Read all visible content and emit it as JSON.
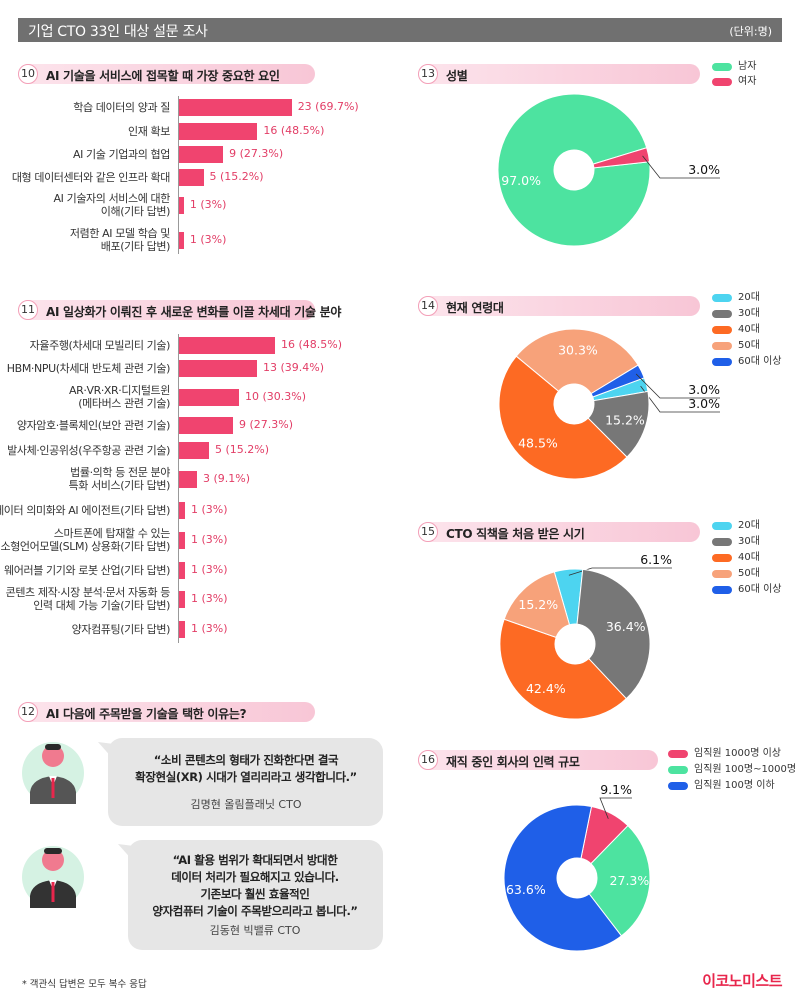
{
  "header": {
    "title": "기업 CTO 33인 대상 설문 조사",
    "unit": "(단위:명)"
  },
  "q10": {
    "num": "10",
    "title": "AI 기술을 서비스에 접목할 때 가장 중요한 요인",
    "chart_data": {
      "type": "bar",
      "categories": [
        "학습 데이터의 양과 질",
        "인재 확보",
        "AI 기술 기업과의 협업",
        "대형 데이터센터와 같은 인프라 확대",
        "AI 기술자의 서비스에 대한\n이해(기타 답변)",
        "저렴한 AI 모델 학습 및\n배포(기타 답변)"
      ],
      "values": [
        23,
        16,
        9,
        5,
        1,
        1
      ],
      "value_labels": [
        "23 (69.7%)",
        "16 (48.5%)",
        "9 (27.3%)",
        "5 (15.2%)",
        "1 (3%)",
        "1 (3%)"
      ],
      "color": "#f0446f"
    }
  },
  "q11": {
    "num": "11",
    "title": "AI 일상화가 이뤄진 후 새로운 변화를 이끌 차세대 기술 분야",
    "chart_data": {
      "type": "bar",
      "categories": [
        "자율주행(차세대 모빌리티 기술)",
        "HBM·NPU(차세대 반도체 관련 기술)",
        "AR·VR·XR·디지털트윈\n(메타버스 관련 기술)",
        "양자암호·블록체인(보안 관련 기술)",
        "발사체·인공위성(우주항공 관련 기술)",
        "법률·의학 등 전문 분야\n특화 서비스(기타 답변)",
        "데이터 의미화와 AI 에이전트(기타 답변)",
        "스마트폰에 탑재할 수 있는\n소형언어모델(SLM) 상용화(기타 답변)",
        "웨어러블 기기와 로봇 산업(기타 답변)",
        "콘텐츠 제작·시장 분석·문서 자동화 등\n인력 대체 가능 기술(기타 답변)",
        "양자컴퓨팅(기타 답변)"
      ],
      "values": [
        16,
        13,
        10,
        9,
        5,
        3,
        1,
        1,
        1,
        1,
        1
      ],
      "value_labels": [
        "16 (48.5%)",
        "13 (39.4%)",
        "10 (30.3%)",
        "9 (27.3%)",
        "5 (15.2%)",
        "3 (9.1%)",
        "1 (3%)",
        "1 (3%)",
        "1 (3%)",
        "1 (3%)",
        "1 (3%)"
      ],
      "color": "#f0446f"
    }
  },
  "q12": {
    "num": "12",
    "title": "AI 다음에 주목받을 기술을 택한 이유는?",
    "quotes": [
      {
        "text": "“소비 콘텐츠의 형태가 진화한다면 결국\n확장현실(XR) 시대가 열리리라고 생각합니다.”",
        "author": "김명현 올림플래닛 CTO"
      },
      {
        "text": "“AI 활용 범위가 확대되면서 방대한\n데이터 처리가 필요해지고 있습니다.\n기존보다 훨씬 효율적인\n양자컴퓨터 기술이 주목받으리라고 봅니다.”",
        "author": "김동현 빅밸류 CTO"
      }
    ]
  },
  "q13": {
    "num": "13",
    "title": "성별",
    "chart_data": {
      "type": "pie",
      "labels": [
        "남자",
        "여자"
      ],
      "values": [
        97.0,
        3.0
      ],
      "value_labels": [
        "97.0%",
        "3.0%"
      ],
      "colors": [
        "#4de3a0",
        "#f0446f"
      ]
    }
  },
  "q14": {
    "num": "14",
    "title": "현재 연령대",
    "chart_data": {
      "type": "pie",
      "labels": [
        "20대",
        "30대",
        "40대",
        "50대",
        "60대 이상"
      ],
      "values": [
        3.0,
        15.2,
        48.5,
        30.3,
        3.0
      ],
      "value_labels": [
        "3.0%",
        "15.2%",
        "48.5%",
        "30.3%",
        "3.0%"
      ],
      "colors": [
        "#4dd4f0",
        "#777777",
        "#fd6a23",
        "#f7a27a",
        "#1f5fe8"
      ]
    }
  },
  "q15": {
    "num": "15",
    "title": "CTO 직책을 처음 받은 시기",
    "chart_data": {
      "type": "pie",
      "labels": [
        "20대",
        "30대",
        "40대",
        "50대",
        "60대 이상"
      ],
      "values": [
        6.1,
        36.4,
        42.4,
        15.2,
        0
      ],
      "value_labels": [
        "6.1%",
        "36.4%",
        "42.4%",
        "15.2%",
        ""
      ],
      "colors": [
        "#4dd4f0",
        "#777777",
        "#fd6a23",
        "#f7a27a",
        "#1f5fe8"
      ]
    }
  },
  "q16": {
    "num": "16",
    "title": "재직 중인 회사의 인력 규모",
    "chart_data": {
      "type": "pie",
      "labels": [
        "임직원 1000명 이상",
        "임직원 100명~1000명",
        "임직원 100명 이하"
      ],
      "values": [
        9.1,
        27.3,
        63.6
      ],
      "value_labels": [
        "9.1%",
        "27.3%",
        "63.6%"
      ],
      "colors": [
        "#f0446f",
        "#4de3a0",
        "#1f5fe8"
      ]
    }
  },
  "footer": {
    "note": "* 객관식 답변은 모두 복수 응답",
    "logo": "이코노미스트"
  }
}
